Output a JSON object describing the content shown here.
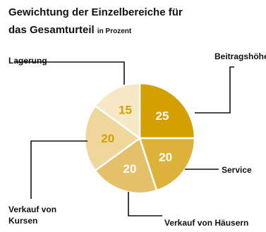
{
  "title_line1": "Gewichtung der Einzelbereiche für",
  "title_line2_main": "das Gesamturteil",
  "title_line2_suffix": "in Prozent",
  "chart_data": {
    "type": "pie",
    "title": "Gewichtung der Einzelbereiche für das Gesamturteil in Prozent",
    "slices": [
      {
        "label": "Beitragshöhe",
        "value": 25,
        "color": "#d4a000",
        "label_color": "#ffffff"
      },
      {
        "label": "Service",
        "value": 20,
        "color": "#dcb23a",
        "label_color": "#ffffff"
      },
      {
        "label": "Verkauf von Häusern",
        "value": 20,
        "color": "#e4c06a",
        "label_color": "#ffffff"
      },
      {
        "label": "Verkauf von Kursen",
        "value": 20,
        "color": "#efd79c",
        "label_color": "#d4a000"
      },
      {
        "label": "Lagerung",
        "value": 15,
        "color": "#f6e8c4",
        "label_color": "#d4a000"
      }
    ]
  }
}
